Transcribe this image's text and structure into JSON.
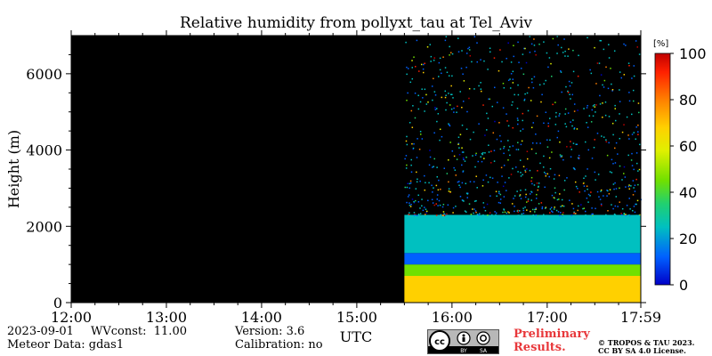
{
  "chart_data": {
    "type": "heatmap",
    "title": "Relative humidity from pollyxt_tau at Tel_Aviv",
    "ylabel": "Height (m)",
    "xlabel": "UTC",
    "x_ticks": [
      "12:00",
      "13:00",
      "14:00",
      "15:00",
      "16:00",
      "17:00",
      "17:59"
    ],
    "y_ticks": [
      0,
      2000,
      4000,
      6000
    ],
    "ylim": [
      0,
      7000
    ],
    "colorbar": {
      "unit": "[%]",
      "ticks": [
        0,
        20,
        40,
        60,
        80,
        100
      ],
      "range": [
        0,
        100
      ],
      "colors": [
        "#0000c8",
        "#0060ff",
        "#00c0c0",
        "#20d070",
        "#70e000",
        "#e0f000",
        "#ffd000",
        "#ff8000",
        "#ff2000",
        "#c00000"
      ]
    },
    "data_start_utc": "15:30",
    "layers": [
      {
        "height_from": 0,
        "height_to": 700,
        "rh": 65
      },
      {
        "height_from": 700,
        "height_to": 1000,
        "rh": 40
      },
      {
        "height_from": 1000,
        "height_to": 1300,
        "rh": 12
      },
      {
        "height_from": 1300,
        "height_to": 2300,
        "rh": 25
      }
    ]
  },
  "meta": {
    "date": "2023-09-01",
    "wvconst": "WVconst:  11.00",
    "meteor": "Meteor Data: gdas1",
    "version": "Version: 3.6",
    "calibration": "Calibration: no"
  },
  "license": {
    "cc_text": "cc",
    "by_text": "BY",
    "sa_text": "SA",
    "preliminary": "Preliminary\nResults.",
    "copyright": "© TROPOS & TAU 2023.\nCC BY SA 4.0 License."
  }
}
